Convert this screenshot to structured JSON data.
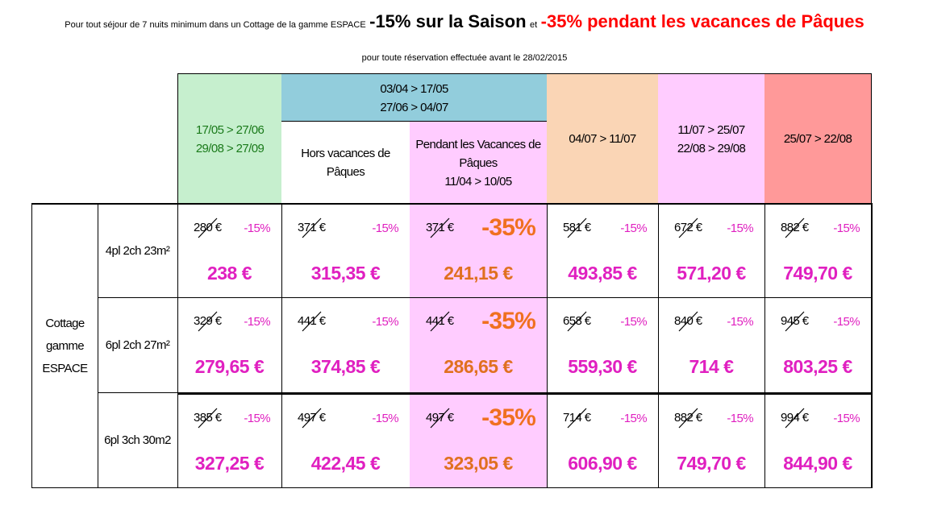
{
  "header": {
    "intro": "Pour tout séjour de 7 nuits minimum dans un Cottage de la gamme ESPACE",
    "offer_season": "-15% sur la Saison",
    "connector": "et",
    "offer_easter": "-35% pendant les vacances de Pâques",
    "deadline": "pour toute réservation effectuée avant le 28/02/2015"
  },
  "columns": {
    "c1": {
      "line1": "17/05 > 27/06",
      "line2": "29/08 > 27/09"
    },
    "group": {
      "line1": "03/04 > 17/05",
      "line2": "27/06 > 04/07"
    },
    "c2": {
      "line1": "Hors vacances de",
      "line2": "Pâques"
    },
    "c3": {
      "line1": "Pendant les Vacances de",
      "line2": "Pâques",
      "line3": "11/04 > 10/05"
    },
    "c4": {
      "line1": "04/07 > 11/07"
    },
    "c5": {
      "line1": "11/07 > 25/07",
      "line2": "22/08 > 29/08"
    },
    "c6": {
      "line1": "25/07 > 22/08"
    }
  },
  "category": {
    "line1": "Cottage",
    "line2": "gamme",
    "line3": "ESPACE"
  },
  "rows": [
    {
      "label": "4pl 2ch 23m²",
      "cells": [
        {
          "old": "280 €",
          "discount": "-15%",
          "price": "238 €"
        },
        {
          "old": "371 €",
          "discount": "-15%",
          "price": "315,35 €"
        },
        {
          "old": "371 €",
          "discount": "-35%",
          "price": "241,15 €"
        },
        {
          "old": "581 €",
          "discount": "-15%",
          "price": "493,85 €"
        },
        {
          "old": "672 €",
          "discount": "-15%",
          "price": "571,20 €"
        },
        {
          "old": "882 €",
          "discount": "-15%",
          "price": "749,70 €"
        }
      ]
    },
    {
      "label": "6pl 2ch 27m²",
      "cells": [
        {
          "old": "329 €",
          "discount": "-15%",
          "price": "279,65 €"
        },
        {
          "old": "441 €",
          "discount": "-15%",
          "price": "374,85 €"
        },
        {
          "old": "441 €",
          "discount": "-35%",
          "price": "286,65 €"
        },
        {
          "old": "658 €",
          "discount": "-15%",
          "price": "559,30 €"
        },
        {
          "old": "840 €",
          "discount": "-15%",
          "price": "714 €"
        },
        {
          "old": "945 €",
          "discount": "-15%",
          "price": "803,25 €"
        }
      ]
    },
    {
      "label": "6pl 3ch 30m2",
      "cells": [
        {
          "old": "385 €",
          "discount": "-15%",
          "price": "327,25 €"
        },
        {
          "old": "497 €",
          "discount": "-15%",
          "price": "422,45 €"
        },
        {
          "old": "497 €",
          "discount": "-35%",
          "price": "323,05 €"
        },
        {
          "old": "714 €",
          "discount": "-15%",
          "price": "606,90 €"
        },
        {
          "old": "882 €",
          "discount": "-15%",
          "price": "749,70 €"
        },
        {
          "old": "994 €",
          "discount": "-15%",
          "price": "844,90 €"
        }
      ]
    }
  ],
  "colors": {
    "green": "#c6efce",
    "blue": "#92cddc",
    "pink": "#ffccff",
    "peach": "#fad5b5",
    "red": "#ff9999",
    "magenta_text": "#e020c0",
    "orange_text": "#f07020",
    "green_text": "#1a7a1a",
    "headline_red": "#ff0000"
  }
}
